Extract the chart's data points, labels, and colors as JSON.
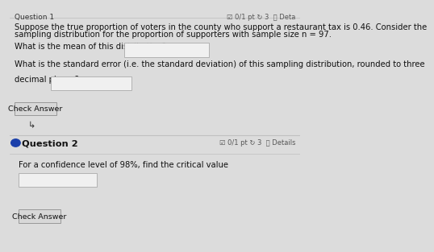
{
  "bg_color": "#dcdcdc",
  "top_bar_text": "Question 1",
  "top_right_text": "☑ 0/1 pt ↻ 3  ⓘ Deta",
  "para1_line1": "Suppose the true proportion of voters in the county who support a restaurant tax is 0.46. Consider the",
  "para1_line2": "sampling distribution for the proportion of supporters with sample size n = 97.",
  "q1_label": "What is the mean of this distribution?",
  "q2_label_line1": "What is the standard error (i.e. the standard deviation) of this sampling distribution, rounded to three",
  "q2_label_line2": "decimal places?",
  "btn1_label": "Check Answer",
  "q2_header": "Question 2",
  "q2_right_text": "☑ 0/1 pt ↻ 3  ⓘ Details",
  "q2_dot_color": "#1a3faa",
  "q3_label": "For a confidence level of 98%, find the critical value",
  "btn2_label": "Check Answer",
  "input_box_color": "#f0f0f0",
  "input_border_color": "#aaaaaa",
  "text_color": "#111111",
  "font_size_body": 7.2,
  "font_size_btn": 6.8,
  "font_size_header": 7.5,
  "section_header_fontsize": 8.2
}
